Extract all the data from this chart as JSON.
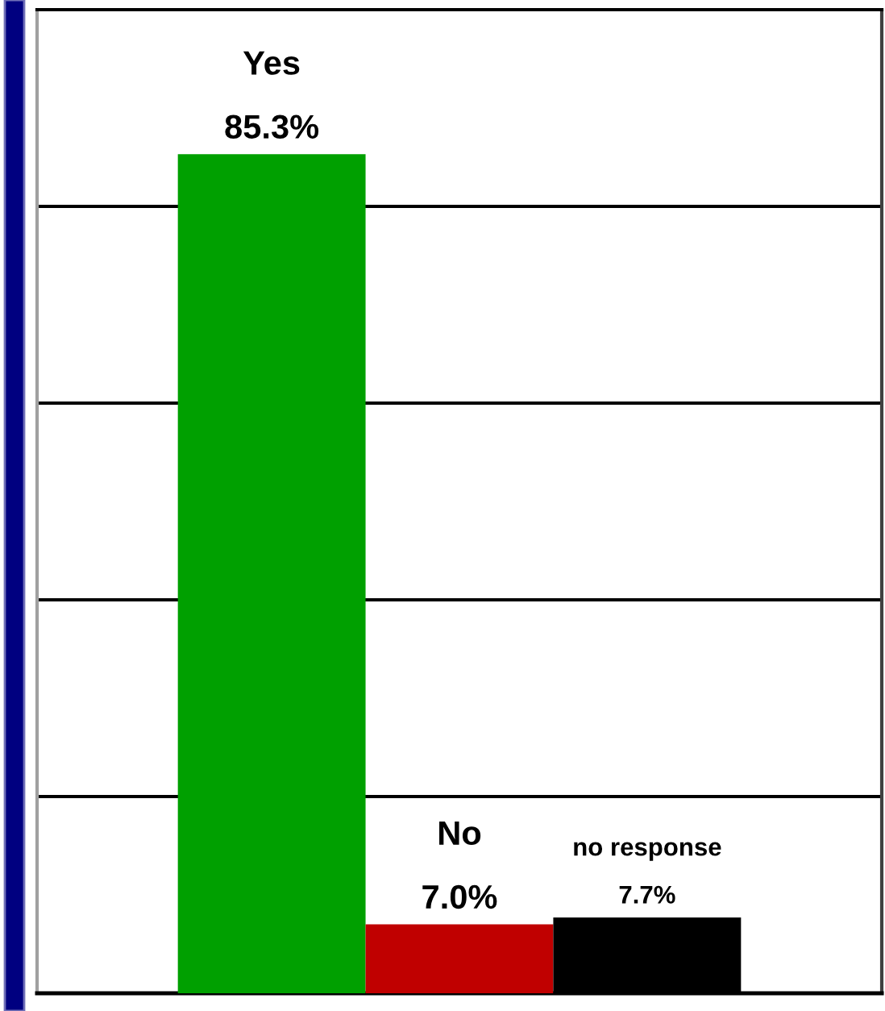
{
  "chart_data": {
    "type": "bar",
    "categories": [
      "Yes",
      "No",
      "no response"
    ],
    "values": [
      85.3,
      7.0,
      7.7
    ],
    "colors": [
      "#00a000",
      "#c00000",
      "#000000"
    ],
    "value_labels": [
      "85.3%",
      "7.0%",
      "7.7%"
    ],
    "ylim": [
      0,
      100
    ],
    "yticks": [
      {
        "value": 0,
        "label": null
      },
      {
        "value": 20,
        "label": null
      },
      {
        "value": 40,
        "label": null
      },
      {
        "value": 60,
        "label": null
      },
      {
        "value": 80,
        "label": null
      },
      {
        "value": 100,
        "label": null
      }
    ],
    "grid": "y",
    "tick_labels": false
  }
}
